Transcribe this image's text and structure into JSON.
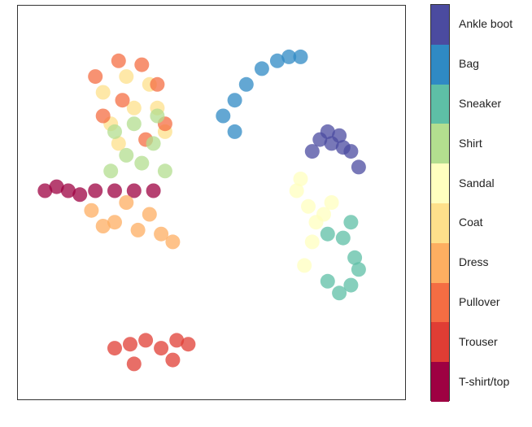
{
  "chart_data": {
    "type": "scatter",
    "title": "",
    "xlabel": "",
    "ylabel": "",
    "axes_ticks": false,
    "grid": false,
    "legend": "colorbar-right",
    "colorbar_order_top_to_bottom": [
      "Ankle boot",
      "Bag",
      "Sneaker",
      "Shirt",
      "Sandal",
      "Coat",
      "Dress",
      "Pullover",
      "Trouser",
      "T-shirt/top"
    ],
    "classes": [
      {
        "label": "T-shirt/top",
        "color": "#9e0142"
      },
      {
        "label": "Trouser",
        "color": "#e03d34"
      },
      {
        "label": "Pullover",
        "color": "#f46d43"
      },
      {
        "label": "Dress",
        "color": "#fdae61"
      },
      {
        "label": "Coat",
        "color": "#fee08b"
      },
      {
        "label": "Sandal",
        "color": "#ffffbf"
      },
      {
        "label": "Shirt",
        "color": "#b3de8f"
      },
      {
        "label": "Sneaker",
        "color": "#5ebfa6"
      },
      {
        "label": "Bag",
        "color": "#2f8ac4"
      },
      {
        "label": "Ankle boot",
        "color": "#4b4ba0"
      }
    ],
    "clusters": [
      {
        "label": "Ankle boot",
        "points": [
          [
            0.78,
            0.66
          ],
          [
            0.8,
            0.68
          ],
          [
            0.83,
            0.67
          ],
          [
            0.86,
            0.63
          ],
          [
            0.88,
            0.59
          ],
          [
            0.84,
            0.64
          ],
          [
            0.81,
            0.65
          ],
          [
            0.76,
            0.63
          ]
        ]
      },
      {
        "label": "Sneaker",
        "points": [
          [
            0.8,
            0.42
          ],
          [
            0.84,
            0.41
          ],
          [
            0.87,
            0.36
          ],
          [
            0.88,
            0.33
          ],
          [
            0.86,
            0.29
          ],
          [
            0.83,
            0.27
          ],
          [
            0.8,
            0.3
          ],
          [
            0.86,
            0.45
          ]
        ]
      },
      {
        "label": "Sandal",
        "points": [
          [
            0.72,
            0.53
          ],
          [
            0.75,
            0.49
          ],
          [
            0.77,
            0.45
          ],
          [
            0.79,
            0.47
          ],
          [
            0.76,
            0.4
          ],
          [
            0.74,
            0.34
          ],
          [
            0.81,
            0.5
          ],
          [
            0.73,
            0.56
          ]
        ]
      },
      {
        "label": "Bag",
        "points": [
          [
            0.53,
            0.72
          ],
          [
            0.56,
            0.76
          ],
          [
            0.59,
            0.8
          ],
          [
            0.63,
            0.84
          ],
          [
            0.67,
            0.86
          ],
          [
            0.7,
            0.87
          ],
          [
            0.73,
            0.87
          ],
          [
            0.56,
            0.68
          ]
        ]
      },
      {
        "label": "Trouser",
        "points": [
          [
            0.25,
            0.13
          ],
          [
            0.29,
            0.14
          ],
          [
            0.33,
            0.15
          ],
          [
            0.37,
            0.13
          ],
          [
            0.41,
            0.15
          ],
          [
            0.44,
            0.14
          ],
          [
            0.4,
            0.1
          ],
          [
            0.3,
            0.09
          ]
        ]
      },
      {
        "label": "T-shirt/top",
        "points": [
          [
            0.07,
            0.53
          ],
          [
            0.1,
            0.54
          ],
          [
            0.13,
            0.53
          ],
          [
            0.16,
            0.52
          ],
          [
            0.2,
            0.53
          ],
          [
            0.25,
            0.53
          ],
          [
            0.3,
            0.53
          ],
          [
            0.35,
            0.53
          ]
        ]
      },
      {
        "label": "Dress",
        "points": [
          [
            0.19,
            0.48
          ],
          [
            0.25,
            0.45
          ],
          [
            0.31,
            0.43
          ],
          [
            0.37,
            0.42
          ],
          [
            0.28,
            0.5
          ],
          [
            0.34,
            0.47
          ],
          [
            0.22,
            0.44
          ],
          [
            0.4,
            0.4
          ]
        ]
      },
      {
        "label": "Coat",
        "points": [
          [
            0.22,
            0.78
          ],
          [
            0.28,
            0.82
          ],
          [
            0.34,
            0.8
          ],
          [
            0.3,
            0.74
          ],
          [
            0.24,
            0.7
          ],
          [
            0.36,
            0.74
          ],
          [
            0.38,
            0.68
          ],
          [
            0.26,
            0.65
          ]
        ]
      },
      {
        "label": "Pullover",
        "points": [
          [
            0.2,
            0.82
          ],
          [
            0.26,
            0.86
          ],
          [
            0.32,
            0.85
          ],
          [
            0.36,
            0.8
          ],
          [
            0.38,
            0.7
          ],
          [
            0.33,
            0.66
          ],
          [
            0.27,
            0.76
          ],
          [
            0.22,
            0.72
          ]
        ]
      },
      {
        "label": "Shirt",
        "points": [
          [
            0.25,
            0.68
          ],
          [
            0.3,
            0.7
          ],
          [
            0.35,
            0.65
          ],
          [
            0.32,
            0.6
          ],
          [
            0.28,
            0.62
          ],
          [
            0.38,
            0.58
          ],
          [
            0.36,
            0.72
          ],
          [
            0.24,
            0.58
          ]
        ]
      }
    ]
  }
}
